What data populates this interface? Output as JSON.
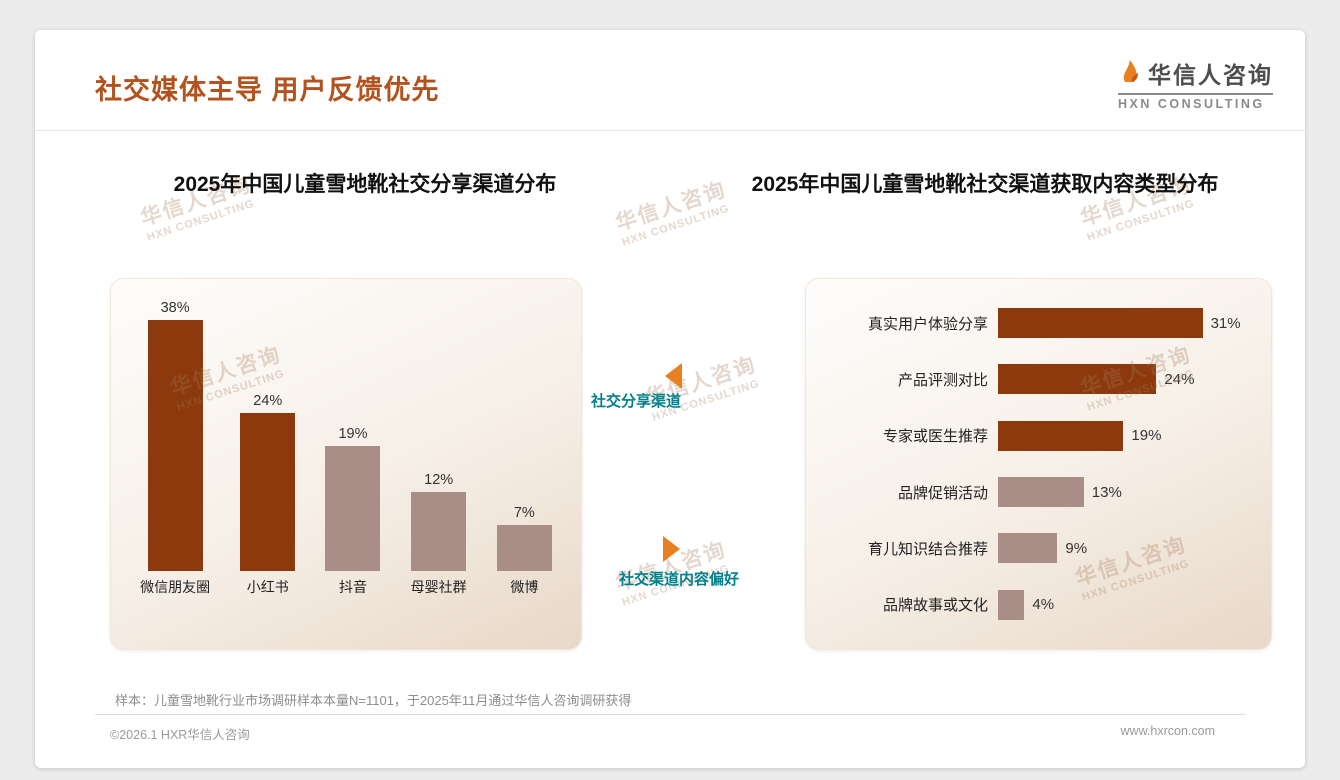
{
  "page": {
    "title": "社交媒体主导 用户反馈优先",
    "footnote": "样本：儿童雪地靴行业市场调研样本本量N=1101，于2025年11月通过华信人咨询调研获得",
    "copyright": "©2026.1 HXR华信人咨询",
    "website": "www.hxrcon.com"
  },
  "logo": {
    "cn": "华信人咨询",
    "en": "HXN CONSULTING"
  },
  "watermark": {
    "cn": "华信人咨询",
    "en": "HXN CONSULTING"
  },
  "annotations": {
    "share_channel_label": "社交分享渠道",
    "content_pref_label": "社交渠道内容偏好"
  },
  "chart_data": [
    {
      "type": "bar",
      "orientation": "vertical",
      "title": "2025年中国儿童雪地靴社交分享渠道分布",
      "categories": [
        "微信朋友圈",
        "小红书",
        "抖音",
        "母婴社群",
        "微博"
      ],
      "values": [
        38,
        24,
        19,
        12,
        7
      ],
      "value_labels": [
        "38%",
        "24%",
        "19%",
        "12%",
        "7%"
      ],
      "bar_colors": [
        "#8C3A0D",
        "#8C3A0D",
        "#A98E87",
        "#A98E87",
        "#A98E87"
      ],
      "ylim": [
        0,
        40
      ],
      "grid": false,
      "legend": false
    },
    {
      "type": "bar",
      "orientation": "horizontal",
      "title": "2025年中国儿童雪地靴社交渠道获取内容类型分布",
      "categories": [
        "真实用户体验分享",
        "产品评测对比",
        "专家或医生推荐",
        "品牌促销活动",
        "育儿知识结合推荐",
        "品牌故事或文化"
      ],
      "values": [
        31,
        24,
        19,
        13,
        9,
        4
      ],
      "value_labels": [
        "31%",
        "24%",
        "19%",
        "13%",
        "9%",
        "4%"
      ],
      "bar_colors": [
        "#8C3A0D",
        "#8C3A0D",
        "#8C3A0D",
        "#A98E87",
        "#A98E87",
        "#A98E87"
      ],
      "xlim": [
        0,
        35
      ],
      "grid": false,
      "legend": false
    }
  ],
  "colors": {
    "title": "#B2521D",
    "bar_dark": "#8C3A0D",
    "bar_light": "#A98E87",
    "annotation_teal": "#00808A",
    "arrow_orange": "#E8801F"
  }
}
